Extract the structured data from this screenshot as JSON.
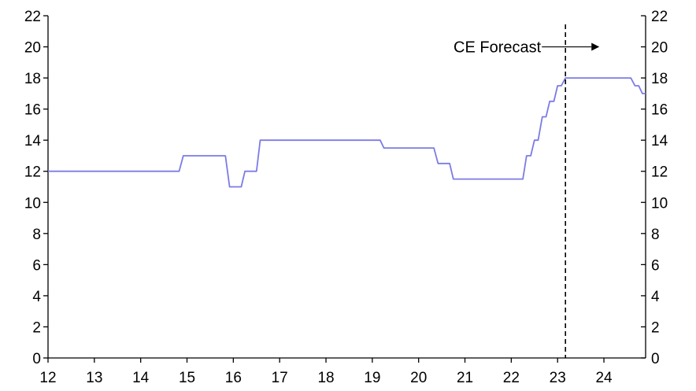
{
  "chart_data": {
    "type": "line",
    "title": "",
    "xlabel": "",
    "ylabel": "",
    "xlim": [
      12,
      24.9
    ],
    "ylim": [
      0,
      22
    ],
    "x_ticks": [
      12,
      13,
      14,
      15,
      16,
      17,
      18,
      19,
      20,
      21,
      22,
      23,
      24
    ],
    "x_tick_labels": [
      "12",
      "13",
      "14",
      "15",
      "16",
      "17",
      "18",
      "19",
      "20",
      "21",
      "22",
      "23",
      "24"
    ],
    "y_ticks": [
      0,
      2,
      4,
      6,
      8,
      10,
      12,
      14,
      16,
      18,
      20,
      22
    ],
    "y_tick_labels": [
      "0",
      "2",
      "4",
      "6",
      "8",
      "10",
      "12",
      "14",
      "16",
      "18",
      "20",
      "22"
    ],
    "right_axis_mirrors_left": true,
    "grid": false,
    "legend": "none",
    "series": [
      {
        "color": "#7b7be6",
        "points": [
          [
            12.0,
            12.0
          ],
          [
            14.83,
            12.0
          ],
          [
            14.92,
            13.0
          ],
          [
            15.83,
            13.0
          ],
          [
            15.92,
            11.0
          ],
          [
            16.17,
            11.0
          ],
          [
            16.25,
            12.0
          ],
          [
            16.5,
            12.0
          ],
          [
            16.58,
            14.0
          ],
          [
            19.17,
            14.0
          ],
          [
            19.25,
            13.5
          ],
          [
            20.33,
            13.5
          ],
          [
            20.42,
            12.5
          ],
          [
            20.67,
            12.5
          ],
          [
            20.75,
            11.5
          ],
          [
            22.25,
            11.5
          ],
          [
            22.33,
            13.0
          ],
          [
            22.42,
            13.0
          ],
          [
            22.5,
            14.0
          ],
          [
            22.58,
            14.0
          ],
          [
            22.67,
            15.5
          ],
          [
            22.75,
            15.5
          ],
          [
            22.83,
            16.5
          ],
          [
            22.92,
            16.5
          ],
          [
            23.0,
            17.5
          ],
          [
            23.08,
            17.5
          ],
          [
            23.17,
            18.0
          ],
          [
            24.58,
            18.0
          ],
          [
            24.67,
            17.5
          ],
          [
            24.75,
            17.5
          ],
          [
            24.83,
            17.0
          ],
          [
            24.9,
            17.0
          ]
        ]
      }
    ],
    "forecast_line_x": 23.17,
    "annotation": {
      "text": "CE Forecast",
      "arrow": "right"
    }
  }
}
